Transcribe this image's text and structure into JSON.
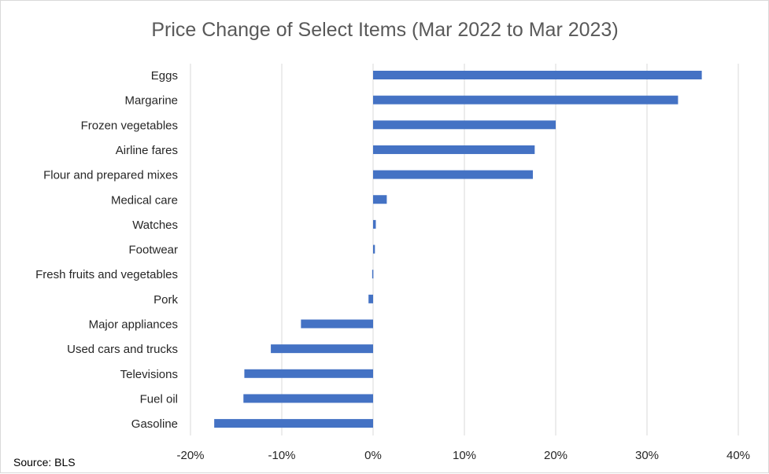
{
  "chart_data": {
    "type": "bar",
    "orientation": "horizontal",
    "title": "Price Change of Select Items (Mar 2022 to Mar 2023)",
    "source": "Source: BLS",
    "categories": [
      "Eggs",
      "Margarine",
      "Frozen vegetables",
      "Airline fares",
      "Flour and prepared mixes",
      "Medical care",
      "Watches",
      "Footwear",
      "Fresh fruits and vegetables",
      "Pork",
      "Major appliances",
      "Used cars and trucks",
      "Televisions",
      "Fuel oil",
      "Gasoline"
    ],
    "values": [
      36.0,
      33.4,
      20.0,
      17.7,
      17.5,
      1.5,
      0.3,
      0.2,
      -0.1,
      -0.5,
      -7.9,
      -11.2,
      -14.1,
      -14.2,
      -17.4
    ],
    "xlim": [
      -20,
      40
    ],
    "xticks": [
      -20,
      -10,
      0,
      10,
      20,
      30,
      40
    ],
    "xtick_labels": [
      "-20%",
      "-10%",
      "0%",
      "10%",
      "20%",
      "30%",
      "40%"
    ],
    "grid": "vertical",
    "legend": "none",
    "bar_color": "#4472c4",
    "grid_color": "#d9d9d9"
  }
}
